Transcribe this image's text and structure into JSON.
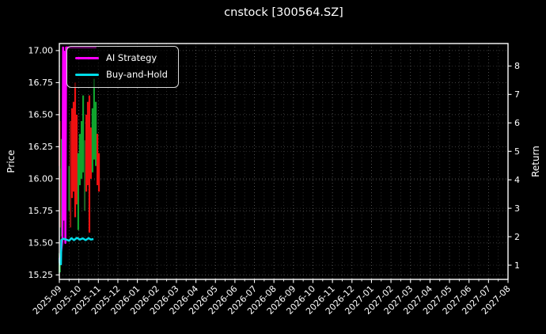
{
  "chart_data": {
    "type": "candlestick+line",
    "title": "cnstock [300564.SZ]",
    "grid": true,
    "legend_position": "upper left",
    "colors": {
      "background": "#000000",
      "text": "#ffffff",
      "grid": "#ffffff",
      "candle": {
        "r": "#ee1111",
        "g": "#10a42e",
        "dr": "#8b1512",
        "dg": "#1d5c22"
      }
    },
    "x_axis": {
      "tick_labels": [
        "2025-09",
        "2025-10",
        "2025-11",
        "2025-12",
        "2026-01",
        "2026-02",
        "2026-03",
        "2026-04",
        "2026-05",
        "2026-06",
        "2026-07",
        "2026-08",
        "2026-09",
        "2026-10",
        "2026-11",
        "2026-12",
        "2027-01",
        "2027-02",
        "2027-03",
        "2027-04",
        "2027-05",
        "2027-06",
        "2027-07",
        "2027-08"
      ]
    },
    "y_left": {
      "label": "Price",
      "ticks": [
        15.25,
        15.5,
        15.75,
        16.0,
        16.25,
        16.5,
        16.75,
        17.0
      ],
      "range": [
        15.215,
        17.055
      ]
    },
    "y_right": {
      "label": "Return",
      "ticks": [
        1,
        2,
        3,
        4,
        5,
        6,
        7,
        8
      ],
      "range": [
        0.5,
        8.79
      ]
    },
    "series": [
      {
        "name": "AI Strategy",
        "color": "#ff00ff",
        "axis": "right",
        "points": [
          [
            -0.05,
            1.25
          ],
          [
            0.0,
            1.12
          ],
          [
            0.05,
            1.04
          ],
          [
            0.1,
            1.55
          ],
          [
            0.16,
            1.9
          ],
          [
            0.19,
            8.65
          ],
          [
            0.23,
            2.6
          ],
          [
            0.27,
            8.5
          ],
          [
            0.31,
            1.78
          ],
          [
            0.35,
            8.65
          ],
          [
            0.45,
            8.65
          ],
          [
            1.9,
            8.65
          ]
        ]
      },
      {
        "name": "Buy-and-Hold",
        "color": "#00dce8",
        "axis": "right",
        "points": [
          [
            -0.05,
            1.25
          ],
          [
            0.0,
            1.12
          ],
          [
            0.05,
            1.04
          ],
          [
            0.08,
            1.03
          ],
          [
            0.1,
            1.88
          ],
          [
            0.2,
            1.93
          ],
          [
            0.35,
            1.9
          ],
          [
            0.5,
            1.86
          ],
          [
            0.62,
            1.95
          ],
          [
            0.75,
            1.88
          ],
          [
            0.9,
            1.96
          ],
          [
            1.05,
            1.9
          ],
          [
            1.2,
            1.94
          ],
          [
            1.35,
            1.88
          ],
          [
            1.5,
            1.95
          ],
          [
            1.62,
            1.9
          ],
          [
            1.75,
            1.92
          ]
        ]
      }
    ],
    "candles": [
      {
        "m": -0.04,
        "hi": 16.7,
        "lo": 16.1,
        "k": "dr",
        "w": 3.2
      },
      {
        "m": -0.04,
        "hi": 15.42,
        "lo": 15.26,
        "k": "g"
      },
      {
        "m": 0.02,
        "hi": 16.45,
        "lo": 15.8,
        "k": "dr"
      },
      {
        "m": 0.03,
        "hi": 15.38,
        "lo": 15.27,
        "k": "g"
      },
      {
        "m": 0.06,
        "hi": 16.08,
        "lo": 15.62,
        "k": "dr"
      },
      {
        "m": 0.12,
        "hi": 16.31,
        "lo": 15.55,
        "k": "g"
      },
      {
        "m": 0.28,
        "hi": 16.05,
        "lo": 15.7,
        "k": "dr"
      },
      {
        "m": 0.51,
        "hi": 16.1,
        "lo": 15.75,
        "k": "g"
      },
      {
        "m": 0.57,
        "hi": 16.45,
        "lo": 15.62,
        "k": "dr"
      },
      {
        "m": 0.65,
        "hi": 16.55,
        "lo": 15.85,
        "k": "r"
      },
      {
        "m": 0.73,
        "hi": 16.6,
        "lo": 15.9,
        "k": "r"
      },
      {
        "m": 0.81,
        "hi": 16.75,
        "lo": 15.7,
        "k": "r"
      },
      {
        "m": 0.89,
        "hi": 16.5,
        "lo": 15.8,
        "k": "r"
      },
      {
        "m": 0.97,
        "hi": 16.2,
        "lo": 15.6,
        "k": "g"
      },
      {
        "m": 1.05,
        "hi": 16.35,
        "lo": 15.95,
        "k": "g"
      },
      {
        "m": 1.14,
        "hi": 16.45,
        "lo": 16.0,
        "k": "g"
      },
      {
        "m": 1.22,
        "hi": 16.65,
        "lo": 16.05,
        "k": "g"
      },
      {
        "m": 1.3,
        "hi": 16.3,
        "lo": 15.75,
        "k": "dg"
      },
      {
        "m": 1.38,
        "hi": 16.5,
        "lo": 15.9,
        "k": "r"
      },
      {
        "m": 1.46,
        "hi": 16.6,
        "lo": 15.95,
        "k": "r"
      },
      {
        "m": 1.54,
        "hi": 16.65,
        "lo": 15.58,
        "k": "r"
      },
      {
        "m": 1.62,
        "hi": 16.4,
        "lo": 16.0,
        "k": "r"
      },
      {
        "m": 1.7,
        "hi": 16.55,
        "lo": 16.05,
        "k": "g"
      },
      {
        "m": 1.78,
        "hi": 16.78,
        "lo": 16.15,
        "k": "g"
      },
      {
        "m": 1.87,
        "hi": 16.6,
        "lo": 16.1,
        "k": "g"
      },
      {
        "m": 1.95,
        "hi": 16.35,
        "lo": 15.95,
        "k": "r"
      },
      {
        "m": 2.03,
        "hi": 16.2,
        "lo": 15.9,
        "k": "r"
      }
    ]
  }
}
